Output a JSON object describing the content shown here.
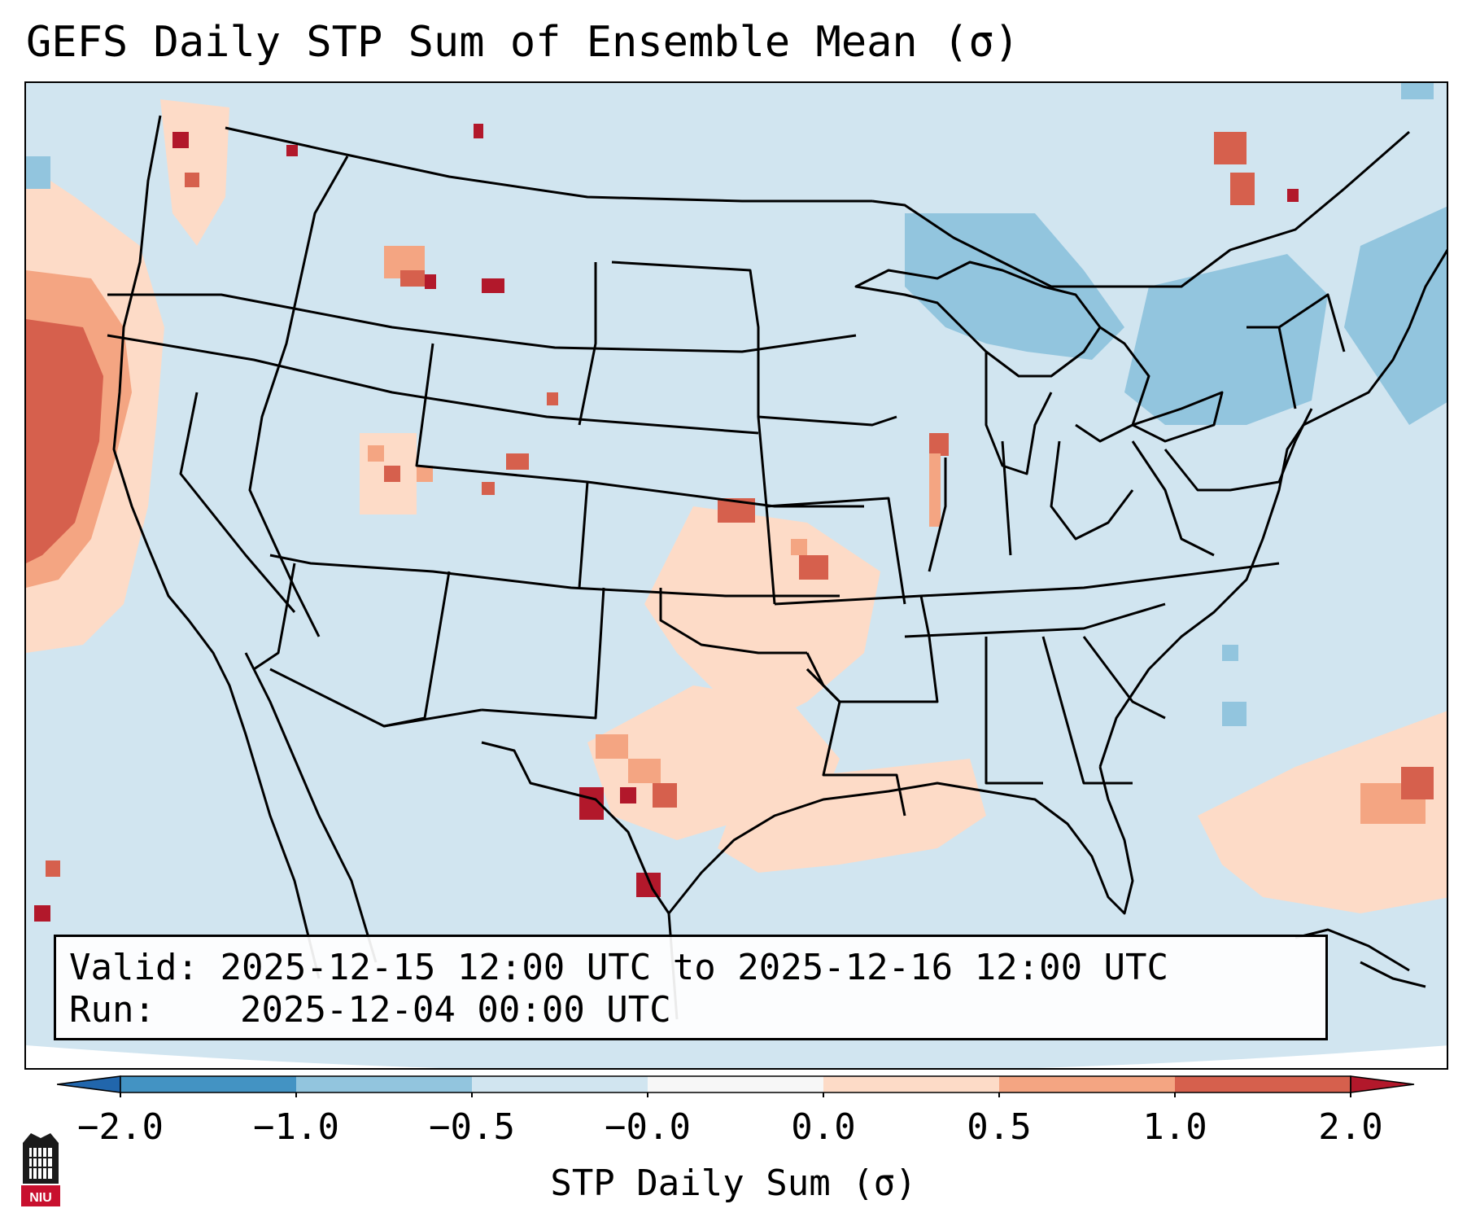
{
  "title": "GEFS Daily STP Sum of Ensemble Mean (σ)",
  "info_box": {
    "valid_label": "Valid:",
    "valid_value": "2025-12-15 12:00 UTC to 2025-12-16 12:00 UTC",
    "run_label": "Run:",
    "run_value": "2025-12-04 00:00 UTC"
  },
  "colorbar": {
    "label": "STP Daily Sum (σ)",
    "ticks": [
      "−2.0",
      "−1.0",
      "−0.5",
      "−0.0",
      "0.0",
      "0.5",
      "1.0",
      "2.0"
    ],
    "bins": [
      {
        "range": "< -2.0",
        "color": "#2166ac"
      },
      {
        "range": "-2.0 to -1.0",
        "color": "#4393c3"
      },
      {
        "range": "-1.0 to -0.5",
        "color": "#92c5de"
      },
      {
        "range": "-0.5 to -0.0",
        "color": "#d1e5f0"
      },
      {
        "range": "-0.0 to 0.0",
        "color": "#f7f7f7"
      },
      {
        "range": "0.0 to 0.5",
        "color": "#fddbc7"
      },
      {
        "range": "0.5 to 1.0",
        "color": "#f4a582"
      },
      {
        "range": "1.0 to 2.0",
        "color": "#d6604d"
      },
      {
        "range": "> 2.0",
        "color": "#b2182b"
      }
    ]
  },
  "map": {
    "region": "Continental United States",
    "background_color": "#d1e5f0"
  },
  "logo": {
    "text": "NIU"
  }
}
